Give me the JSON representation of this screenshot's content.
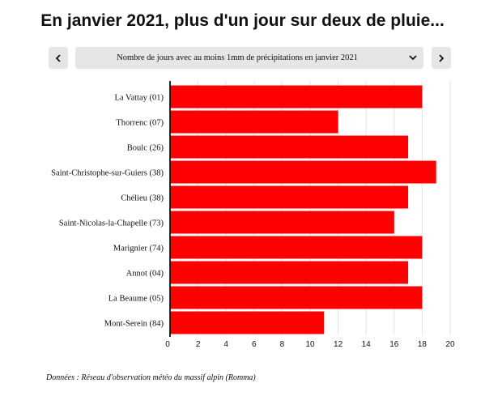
{
  "title": "En janvier 2021, plus d'un jour sur deux de pluie...",
  "nav": {
    "prev_icon": "chevron-left-icon",
    "next_icon": "chevron-right-icon",
    "dropdown_icon": "chevron-down-icon"
  },
  "selector": {
    "selected": "Nombre de jours avec au moins 1mm de précipitations en janvier 2021"
  },
  "source": "Données : Réseau d'observation météo du massif alpin (Romma)",
  "colors": {
    "bar": "#ff0000",
    "button": "#e6e6e6"
  },
  "chart_data": {
    "type": "bar",
    "orientation": "horizontal",
    "categories": [
      "La Vattay (01)",
      "Thorrenc (07)",
      "Boulc (26)",
      "Saint-Christophe-sur-Guiers (38)",
      "Chélieu (38)",
      "Saint-Nicolas-la-Chapelle (73)",
      "Marignier (74)",
      "Annot (04)",
      "La Beaume (05)",
      "Mont-Serein (84)"
    ],
    "values": [
      18,
      12,
      17,
      19,
      17,
      16,
      18,
      17,
      18,
      11
    ],
    "xlim": [
      0,
      20
    ],
    "xticks": [
      "0",
      "2",
      "4",
      "6",
      "8",
      "10",
      "12",
      "14",
      "16",
      "18",
      "20"
    ],
    "grid": true
  }
}
